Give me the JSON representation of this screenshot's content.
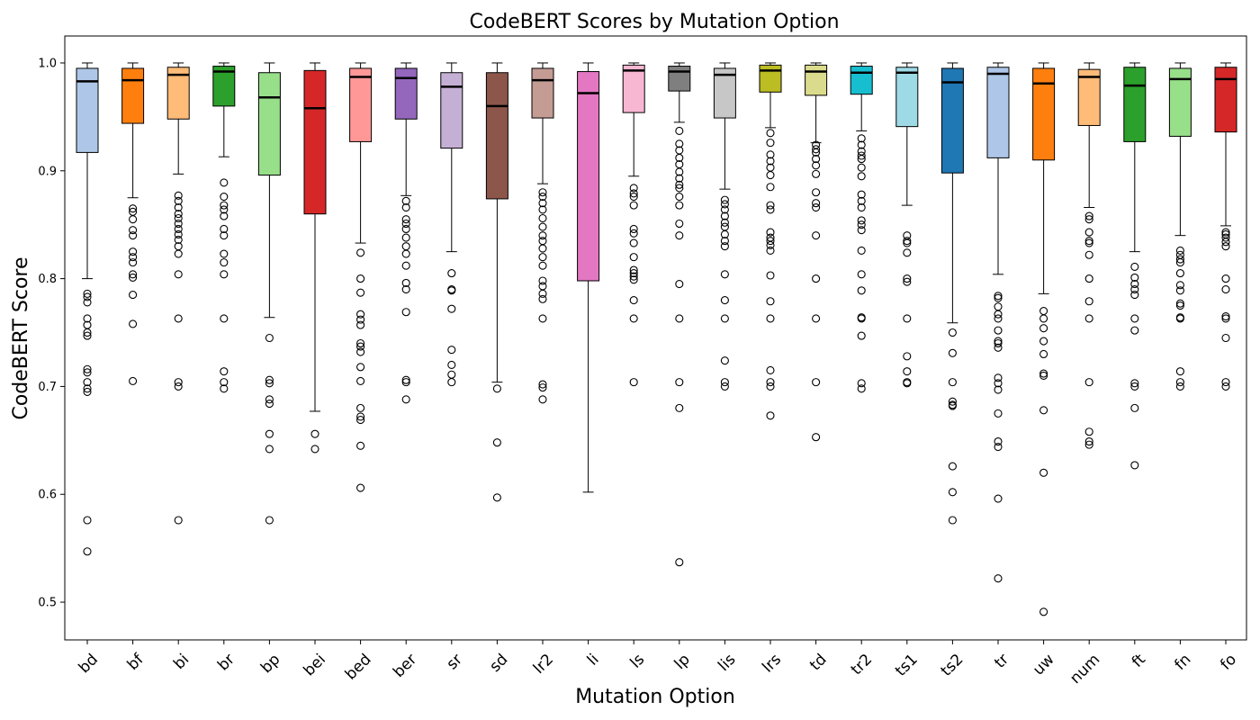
{
  "chart_data": {
    "type": "box",
    "title": "CodeBERT Scores by Mutation Option",
    "xlabel": "Mutation Option",
    "ylabel": "CodeBERT Score",
    "ylim": [
      0.465,
      1.025
    ],
    "yticks": [
      "0.5",
      "0.6",
      "0.7",
      "0.8",
      "0.9",
      "1.0"
    ],
    "grid": false,
    "legend": "none",
    "boxes": [
      {
        "label": "bd",
        "color": "#aec7e8",
        "whisker_low": 0.8,
        "q1": 0.917,
        "median": 0.983,
        "q3": 0.995,
        "whisker_high": 1.0,
        "outliers": [
          0.786,
          0.783,
          0.778,
          0.763,
          0.757,
          0.75,
          0.747,
          0.716,
          0.713,
          0.704,
          0.698,
          0.695,
          0.576,
          0.547
        ]
      },
      {
        "label": "bf",
        "color": "#ff7f0e",
        "whisker_low": 0.875,
        "q1": 0.944,
        "median": 0.984,
        "q3": 0.995,
        "whisker_high": 1.0,
        "outliers": [
          0.865,
          0.862,
          0.855,
          0.845,
          0.84,
          0.825,
          0.82,
          0.815,
          0.804,
          0.801,
          0.785,
          0.758,
          0.705
        ]
      },
      {
        "label": "bi",
        "color": "#ffbb78",
        "whisker_low": 0.897,
        "q1": 0.948,
        "median": 0.989,
        "q3": 0.996,
        "whisker_high": 1.0,
        "outliers": [
          0.877,
          0.872,
          0.866,
          0.86,
          0.856,
          0.851,
          0.846,
          0.841,
          0.836,
          0.83,
          0.823,
          0.804,
          0.763,
          0.704,
          0.7,
          0.576
        ]
      },
      {
        "label": "br",
        "color": "#2ca02c",
        "whisker_low": 0.913,
        "q1": 0.96,
        "median": 0.992,
        "q3": 0.997,
        "whisker_high": 1.0,
        "outliers": [
          0.889,
          0.876,
          0.868,
          0.864,
          0.858,
          0.846,
          0.84,
          0.823,
          0.815,
          0.804,
          0.763,
          0.714,
          0.704,
          0.698
        ]
      },
      {
        "label": "bp",
        "color": "#98df8a",
        "whisker_low": 0.764,
        "q1": 0.896,
        "median": 0.968,
        "q3": 0.991,
        "whisker_high": 1.0,
        "outliers": [
          0.745,
          0.706,
          0.703,
          0.688,
          0.684,
          0.656,
          0.642,
          0.576
        ]
      },
      {
        "label": "bei",
        "color": "#d62728",
        "whisker_low": 0.677,
        "q1": 0.86,
        "median": 0.958,
        "q3": 0.993,
        "whisker_high": 1.0,
        "outliers": [
          0.656,
          0.642
        ]
      },
      {
        "label": "bed",
        "color": "#ff9896",
        "whisker_low": 0.833,
        "q1": 0.927,
        "median": 0.987,
        "q3": 0.995,
        "whisker_high": 1.0,
        "outliers": [
          0.824,
          0.8,
          0.787,
          0.767,
          0.762,
          0.757,
          0.74,
          0.737,
          0.732,
          0.718,
          0.705,
          0.68,
          0.672,
          0.669,
          0.645,
          0.606
        ]
      },
      {
        "label": "ber",
        "color": "#9467bd",
        "whisker_low": 0.877,
        "q1": 0.948,
        "median": 0.986,
        "q3": 0.995,
        "whisker_high": 1.0,
        "outliers": [
          0.872,
          0.866,
          0.855,
          0.851,
          0.846,
          0.838,
          0.83,
          0.823,
          0.812,
          0.796,
          0.79,
          0.769,
          0.706,
          0.704,
          0.688
        ]
      },
      {
        "label": "sr",
        "color": "#c5b0d5",
        "whisker_low": 0.825,
        "q1": 0.921,
        "median": 0.978,
        "q3": 0.991,
        "whisker_high": 1.0,
        "outliers": [
          0.805,
          0.79,
          0.789,
          0.772,
          0.734,
          0.72,
          0.711,
          0.704
        ]
      },
      {
        "label": "sd",
        "color": "#8c564b",
        "whisker_low": 0.704,
        "q1": 0.874,
        "median": 0.96,
        "q3": 0.991,
        "whisker_high": 1.0,
        "outliers": [
          0.698,
          0.648,
          0.597
        ]
      },
      {
        "label": "lr2",
        "color": "#c49c94",
        "whisker_low": 0.888,
        "q1": 0.949,
        "median": 0.984,
        "q3": 0.995,
        "whisker_high": 1.0,
        "outliers": [
          0.88,
          0.876,
          0.87,
          0.864,
          0.856,
          0.848,
          0.84,
          0.835,
          0.828,
          0.82,
          0.812,
          0.798,
          0.793,
          0.786,
          0.781,
          0.763,
          0.702,
          0.699,
          0.688
        ]
      },
      {
        "label": "li",
        "color": "#e377c2",
        "whisker_low": 0.602,
        "q1": 0.798,
        "median": 0.972,
        "q3": 0.992,
        "whisker_high": 1.0,
        "outliers": []
      },
      {
        "label": "ls",
        "color": "#f7b6d2",
        "whisker_low": 0.895,
        "q1": 0.954,
        "median": 0.993,
        "q3": 0.998,
        "whisker_high": 1.0,
        "outliers": [
          0.884,
          0.879,
          0.876,
          0.868,
          0.846,
          0.842,
          0.833,
          0.82,
          0.808,
          0.805,
          0.802,
          0.799,
          0.78,
          0.763,
          0.704
        ]
      },
      {
        "label": "lp",
        "color": "#7f7f7f",
        "whisker_low": 0.945,
        "q1": 0.974,
        "median": 0.992,
        "q3": 0.997,
        "whisker_high": 1.0,
        "outliers": [
          0.937,
          0.925,
          0.919,
          0.912,
          0.906,
          0.899,
          0.893,
          0.887,
          0.884,
          0.876,
          0.868,
          0.851,
          0.84,
          0.795,
          0.763,
          0.704,
          0.68,
          0.537
        ]
      },
      {
        "label": "lis",
        "color": "#c7c7c7",
        "whisker_low": 0.883,
        "q1": 0.949,
        "median": 0.989,
        "q3": 0.995,
        "whisker_high": 1.0,
        "outliers": [
          0.873,
          0.869,
          0.864,
          0.858,
          0.852,
          0.848,
          0.841,
          0.835,
          0.83,
          0.804,
          0.78,
          0.763,
          0.724,
          0.704,
          0.7
        ]
      },
      {
        "label": "lrs",
        "color": "#bcbd22",
        "whisker_low": 0.94,
        "q1": 0.973,
        "median": 0.993,
        "q3": 0.998,
        "whisker_high": 1.0,
        "outliers": [
          0.935,
          0.926,
          0.915,
          0.909,
          0.903,
          0.896,
          0.885,
          0.868,
          0.864,
          0.843,
          0.838,
          0.835,
          0.831,
          0.826,
          0.803,
          0.779,
          0.763,
          0.715,
          0.704,
          0.7,
          0.673
        ]
      },
      {
        "label": "td",
        "color": "#dbdb8d",
        "whisker_low": 0.926,
        "q1": 0.97,
        "median": 0.992,
        "q3": 0.998,
        "whisker_high": 1.0,
        "outliers": [
          0.924,
          0.92,
          0.917,
          0.911,
          0.905,
          0.897,
          0.88,
          0.87,
          0.866,
          0.84,
          0.8,
          0.763,
          0.704,
          0.653
        ]
      },
      {
        "label": "tr2",
        "color": "#17becf",
        "whisker_low": 0.937,
        "q1": 0.971,
        "median": 0.991,
        "q3": 0.997,
        "whisker_high": 1.0,
        "outliers": [
          0.93,
          0.924,
          0.918,
          0.914,
          0.911,
          0.903,
          0.895,
          0.878,
          0.872,
          0.866,
          0.854,
          0.85,
          0.845,
          0.826,
          0.804,
          0.789,
          0.764,
          0.763,
          0.747,
          0.703,
          0.698
        ]
      },
      {
        "label": "ts1",
        "color": "#9edae5",
        "whisker_low": 0.868,
        "q1": 0.941,
        "median": 0.991,
        "q3": 0.996,
        "whisker_high": 1.0,
        "outliers": [
          0.84,
          0.835,
          0.833,
          0.824,
          0.8,
          0.797,
          0.763,
          0.728,
          0.714,
          0.704,
          0.703
        ]
      },
      {
        "label": "ts2",
        "color": "#1f77b4",
        "whisker_low": 0.759,
        "q1": 0.898,
        "median": 0.982,
        "q3": 0.995,
        "whisker_high": 1.0,
        "outliers": [
          0.75,
          0.731,
          0.704,
          0.686,
          0.683,
          0.682,
          0.626,
          0.602,
          0.576
        ]
      },
      {
        "label": "tr",
        "color": "#aec7e8",
        "whisker_low": 0.804,
        "q1": 0.912,
        "median": 0.99,
        "q3": 0.996,
        "whisker_high": 1.0,
        "outliers": [
          0.784,
          0.782,
          0.774,
          0.767,
          0.763,
          0.752,
          0.742,
          0.74,
          0.736,
          0.708,
          0.703,
          0.697,
          0.675,
          0.649,
          0.644,
          0.596,
          0.522
        ]
      },
      {
        "label": "uw",
        "color": "#ff7f0e",
        "whisker_low": 0.786,
        "q1": 0.91,
        "median": 0.981,
        "q3": 0.995,
        "whisker_high": 1.0,
        "outliers": [
          0.77,
          0.763,
          0.754,
          0.742,
          0.73,
          0.712,
          0.71,
          0.678,
          0.62,
          0.491
        ]
      },
      {
        "label": "num",
        "color": "#ffbb78",
        "whisker_low": 0.866,
        "q1": 0.942,
        "median": 0.987,
        "q3": 0.994,
        "whisker_high": 1.0,
        "outliers": [
          0.858,
          0.855,
          0.843,
          0.835,
          0.833,
          0.822,
          0.8,
          0.779,
          0.763,
          0.704,
          0.658,
          0.649,
          0.646
        ]
      },
      {
        "label": "ft",
        "color": "#2ca02c",
        "whisker_low": 0.825,
        "q1": 0.927,
        "median": 0.979,
        "q3": 0.996,
        "whisker_high": 1.0,
        "outliers": [
          0.811,
          0.801,
          0.795,
          0.79,
          0.785,
          0.763,
          0.752,
          0.703,
          0.7,
          0.68,
          0.627
        ]
      },
      {
        "label": "fn",
        "color": "#98df8a",
        "whisker_low": 0.84,
        "q1": 0.932,
        "median": 0.985,
        "q3": 0.995,
        "whisker_high": 1.0,
        "outliers": [
          0.826,
          0.822,
          0.818,
          0.815,
          0.805,
          0.794,
          0.789,
          0.777,
          0.775,
          0.764,
          0.763,
          0.714,
          0.704,
          0.7
        ]
      },
      {
        "label": "fo",
        "color": "#d62728",
        "whisker_low": 0.849,
        "q1": 0.936,
        "median": 0.985,
        "q3": 0.996,
        "whisker_high": 1.0,
        "outliers": [
          0.843,
          0.841,
          0.838,
          0.834,
          0.83,
          0.8,
          0.79,
          0.765,
          0.763,
          0.745,
          0.704,
          0.7
        ]
      }
    ]
  }
}
